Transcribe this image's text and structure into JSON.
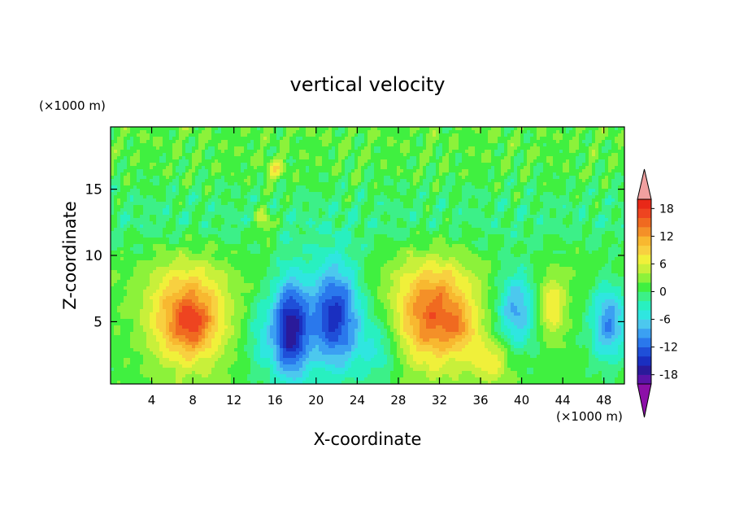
{
  "chart_data": {
    "type": "heatmap",
    "subtype": "filled-contour",
    "title": "vertical velocity",
    "xlabel": "X-coordinate",
    "ylabel": "Z-coordinate",
    "x_unit": "(×1000 m)",
    "y_unit": "(×1000 m)",
    "xlim": [
      0,
      50
    ],
    "ylim": [
      0.3,
      19.7
    ],
    "x_ticks": [
      4,
      8,
      12,
      16,
      20,
      24,
      28,
      32,
      36,
      40,
      44,
      48
    ],
    "y_ticks": [
      5,
      10,
      15
    ],
    "colorbar": {
      "levels": [
        -22,
        -20,
        -18,
        -16,
        -14,
        -12,
        -10,
        -8,
        -6,
        -4,
        -2,
        0,
        2,
        4,
        6,
        8,
        10,
        12,
        14,
        16,
        18,
        20,
        22
      ],
      "tick_labels": [
        18,
        12,
        6,
        0,
        -6,
        -12,
        -18
      ],
      "colors": [
        "#8c10a8",
        "#5a14a8",
        "#2a1a9a",
        "#1a2fc0",
        "#1f4fd8",
        "#2a78ec",
        "#3ba0f2",
        "#4cc8ee",
        "#2fe6e0",
        "#28f0c0",
        "#3cf088",
        "#40f040",
        "#8cf23a",
        "#c8f03a",
        "#f0f03a",
        "#f8d040",
        "#f8b830",
        "#f49028",
        "#f06a20",
        "#ee4420",
        "#e82818",
        "#f0a0a0"
      ],
      "extend": "both"
    },
    "features": [
      {
        "x": 7.5,
        "z": 5.3,
        "peak": 13,
        "sx": 2.6,
        "sz": 2.6
      },
      {
        "x": 8.0,
        "z": 4.8,
        "peak": 4,
        "sx": 1.2,
        "sz": 1.2
      },
      {
        "x": 17.5,
        "z": 4.5,
        "peak": -18,
        "sx": 1.3,
        "sz": 2.8
      },
      {
        "x": 21.8,
        "z": 5.5,
        "peak": -16,
        "sx": 1.7,
        "sz": 2.9
      },
      {
        "x": 31.5,
        "z": 5.5,
        "peak": 14,
        "sx": 2.7,
        "sz": 2.7
      },
      {
        "x": 34.0,
        "z": 4.5,
        "peak": 4,
        "sx": 1.0,
        "sz": 1.0
      },
      {
        "x": 39.5,
        "z": 6.0,
        "peak": -10,
        "sx": 1.3,
        "sz": 2.0
      },
      {
        "x": 43.0,
        "z": 6.0,
        "peak": 7,
        "sx": 0.9,
        "sz": 1.6
      },
      {
        "x": 48.5,
        "z": 5.0,
        "peak": -11,
        "sx": 1.2,
        "sz": 2.0
      },
      {
        "x": 37.0,
        "z": 2.0,
        "peak": 6,
        "sx": 1.4,
        "sz": 1.2
      },
      {
        "x": 26.0,
        "z": 3.0,
        "peak": -5,
        "sx": 1.5,
        "sz": 2.0
      },
      {
        "x": 14.5,
        "z": 4.0,
        "peak": -4,
        "sx": 1.0,
        "sz": 2.0
      },
      {
        "x": 15.0,
        "z": 12.5,
        "peak": 6,
        "sx": 0.6,
        "sz": 0.8
      },
      {
        "x": 16.0,
        "z": 16.5,
        "peak": 5,
        "sx": 0.7,
        "sz": 0.6
      }
    ]
  }
}
